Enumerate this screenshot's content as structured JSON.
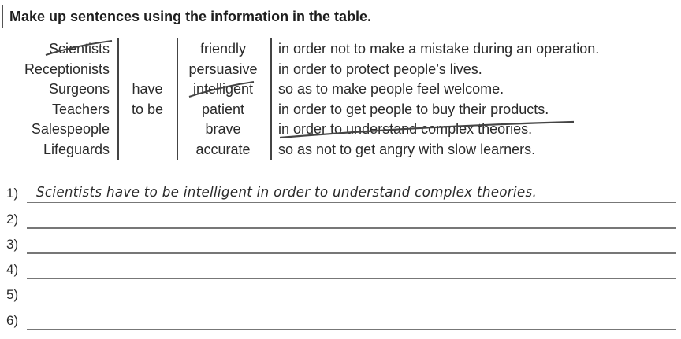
{
  "title": "Make up sentences using the information in the table.",
  "table": {
    "subjects": [
      "Scientists",
      "Receptionists",
      "Surgeons",
      "Teachers",
      "Salespeople",
      "Lifeguards"
    ],
    "verb": [
      "have",
      "to be"
    ],
    "adjectives": [
      "friendly",
      "persuasive",
      "intelligent",
      "patient",
      "brave",
      "accurate"
    ],
    "purposes": [
      "in order not to make a mistake during an operation.",
      "in order to protect people’s lives.",
      "so as to make people feel welcome.",
      "in order to get people to buy their products.",
      "in order to understand complex theories.",
      "so as not to get angry with slow learners."
    ]
  },
  "answers": [
    {
      "number": "1)",
      "text": "Scientists have to be intelligent in order to understand complex theories."
    },
    {
      "number": "2)",
      "text": ""
    },
    {
      "number": "3)",
      "text": ""
    },
    {
      "number": "4)",
      "text": ""
    },
    {
      "number": "5)",
      "text": ""
    },
    {
      "number": "6)",
      "text": ""
    }
  ]
}
